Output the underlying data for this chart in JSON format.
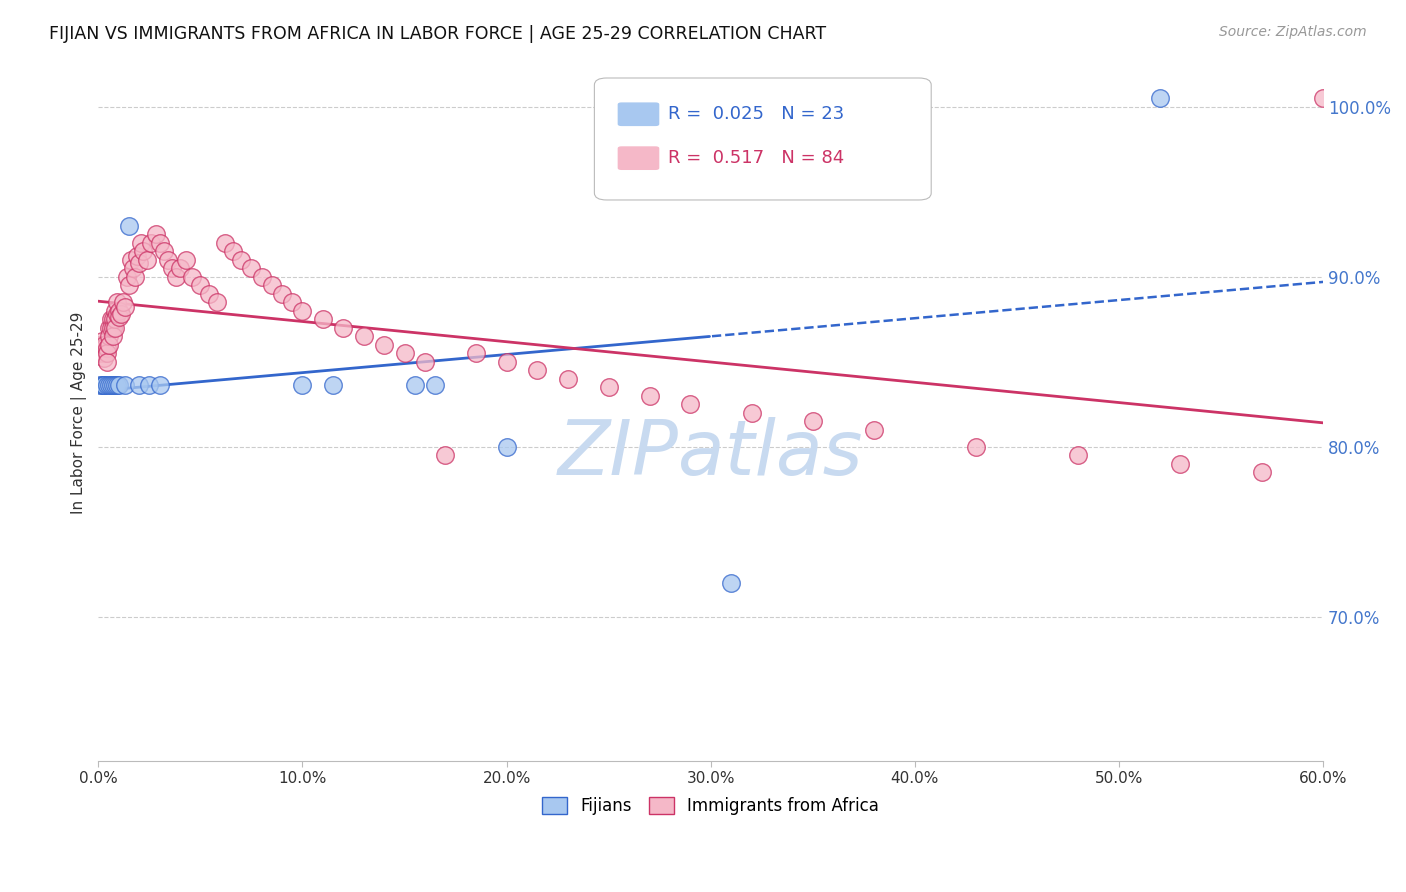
{
  "title": "FIJIAN VS IMMIGRANTS FROM AFRICA IN LABOR FORCE | AGE 25-29 CORRELATION CHART",
  "source": "Source: ZipAtlas.com",
  "ylabel": "In Labor Force | Age 25-29",
  "xlim": [
    0.0,
    0.6
  ],
  "ylim": [
    0.615,
    1.025
  ],
  "xticks": [
    0.0,
    0.1,
    0.2,
    0.3,
    0.4,
    0.5,
    0.6
  ],
  "yticks_right": [
    0.7,
    0.8,
    0.9,
    1.0
  ],
  "ytick_labels_right": [
    "70.0%",
    "80.0%",
    "90.0%",
    "100.0%"
  ],
  "xtick_labels": [
    "0.0%",
    "10.0%",
    "20.0%",
    "30.0%",
    "40.0%",
    "50.0%",
    "60.0%"
  ],
  "grid_color": "#cccccc",
  "background_color": "#ffffff",
  "fijians_color": "#a8c8f0",
  "africa_color": "#f5b8c8",
  "fijians_line_color": "#3366cc",
  "africa_line_color": "#cc3366",
  "right_axis_color": "#4477cc",
  "R_fijians": 0.025,
  "N_fijians": 23,
  "R_africa": 0.517,
  "N_africa": 84,
  "fijians_x": [
    0.001,
    0.002,
    0.003,
    0.003,
    0.004,
    0.005,
    0.006,
    0.007,
    0.008,
    0.009,
    0.01,
    0.013,
    0.015,
    0.02,
    0.025,
    0.03,
    0.1,
    0.115,
    0.155,
    0.165,
    0.2,
    0.31,
    0.52
  ],
  "fijians_y": [
    0.836,
    0.836,
    0.836,
    0.836,
    0.836,
    0.836,
    0.836,
    0.836,
    0.836,
    0.836,
    0.836,
    0.836,
    0.93,
    0.836,
    0.836,
    0.836,
    0.836,
    0.836,
    0.836,
    0.836,
    0.8,
    0.72,
    1.005
  ],
  "africa_x": [
    0.001,
    0.001,
    0.002,
    0.002,
    0.002,
    0.003,
    0.003,
    0.003,
    0.003,
    0.004,
    0.004,
    0.004,
    0.005,
    0.005,
    0.005,
    0.006,
    0.006,
    0.007,
    0.007,
    0.007,
    0.008,
    0.008,
    0.008,
    0.009,
    0.009,
    0.01,
    0.01,
    0.011,
    0.012,
    0.013,
    0.014,
    0.015,
    0.016,
    0.017,
    0.018,
    0.019,
    0.02,
    0.021,
    0.022,
    0.024,
    0.026,
    0.028,
    0.03,
    0.032,
    0.034,
    0.036,
    0.038,
    0.04,
    0.043,
    0.046,
    0.05,
    0.054,
    0.058,
    0.062,
    0.066,
    0.07,
    0.075,
    0.08,
    0.085,
    0.09,
    0.095,
    0.1,
    0.11,
    0.12,
    0.13,
    0.14,
    0.15,
    0.16,
    0.17,
    0.185,
    0.2,
    0.215,
    0.23,
    0.25,
    0.27,
    0.29,
    0.32,
    0.35,
    0.38,
    0.43,
    0.48,
    0.53,
    0.57,
    0.6
  ],
  "africa_y": [
    0.86,
    0.855,
    0.862,
    0.858,
    0.855,
    0.858,
    0.855,
    0.852,
    0.86,
    0.858,
    0.855,
    0.85,
    0.87,
    0.865,
    0.86,
    0.875,
    0.87,
    0.875,
    0.87,
    0.865,
    0.88,
    0.875,
    0.87,
    0.885,
    0.878,
    0.88,
    0.876,
    0.878,
    0.885,
    0.882,
    0.9,
    0.895,
    0.91,
    0.905,
    0.9,
    0.912,
    0.908,
    0.92,
    0.915,
    0.91,
    0.92,
    0.925,
    0.92,
    0.915,
    0.91,
    0.905,
    0.9,
    0.905,
    0.91,
    0.9,
    0.895,
    0.89,
    0.885,
    0.92,
    0.915,
    0.91,
    0.905,
    0.9,
    0.895,
    0.89,
    0.885,
    0.88,
    0.875,
    0.87,
    0.865,
    0.86,
    0.855,
    0.85,
    0.795,
    0.855,
    0.85,
    0.845,
    0.84,
    0.835,
    0.83,
    0.825,
    0.82,
    0.815,
    0.81,
    0.8,
    0.795,
    0.79,
    0.785,
    1.005
  ],
  "solid_cutoff": 0.3,
  "watermark_text": "ZIPatlas",
  "watermark_color": "#c8daf0",
  "watermark_fontsize": 55
}
